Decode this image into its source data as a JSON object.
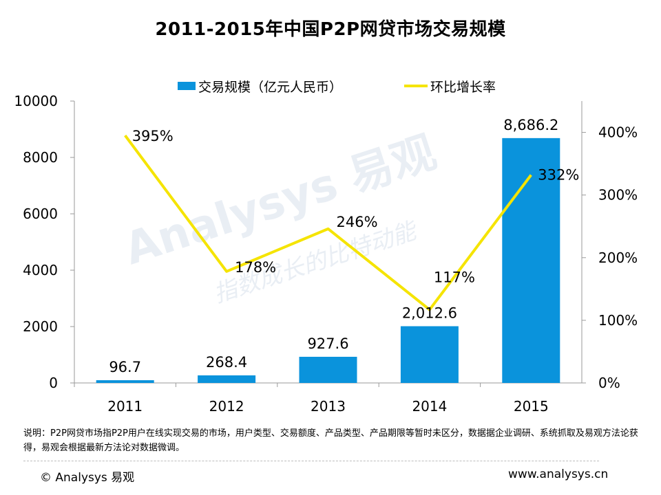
{
  "chart_data": {
    "type": "bar+line",
    "title": "2011-2015年中国P2P网贷市场交易规模",
    "categories": [
      "2011",
      "2012",
      "2013",
      "2014",
      "2015"
    ],
    "series": [
      {
        "name": "交易规模（亿元人民币）",
        "type": "bar",
        "axis": "left",
        "values": [
          96.7,
          268.4,
          927.6,
          2012.6,
          8686.2
        ],
        "labels": [
          "96.7",
          "268.4",
          "927.6",
          "2,012.6",
          "8,686.2"
        ],
        "color": "#0a93dc"
      },
      {
        "name": "环比增长率",
        "type": "line",
        "axis": "right",
        "values": [
          395,
          178,
          246,
          117,
          332
        ],
        "labels": [
          "395%",
          "178%",
          "246%",
          "117%",
          "332%"
        ],
        "color": "#f5e400"
      }
    ],
    "y_left": {
      "min": 0,
      "max": 10000,
      "ticks": [
        "0",
        "2000",
        "4000",
        "6000",
        "8000",
        "10000"
      ]
    },
    "y_right": {
      "min": 0,
      "max": 450,
      "ticks": [
        "0%",
        "100%",
        "200%",
        "300%",
        "400%"
      ]
    },
    "legend_position": "top"
  },
  "watermark": {
    "brand": "Analysys 易观",
    "slogan": "指数成长的比特动能"
  },
  "note": "说明：P2P网贷市场指P2P用户在线实现交易的市场，用户类型、交易额度、产品类型、产品期限等暂时未区分，数据据企业调研、系统抓取及易观方法论获得，易观会根据最新方法论对数据微调。",
  "footer": {
    "copyright": "© Analysys 易观",
    "website": "www.analysys.cn"
  }
}
